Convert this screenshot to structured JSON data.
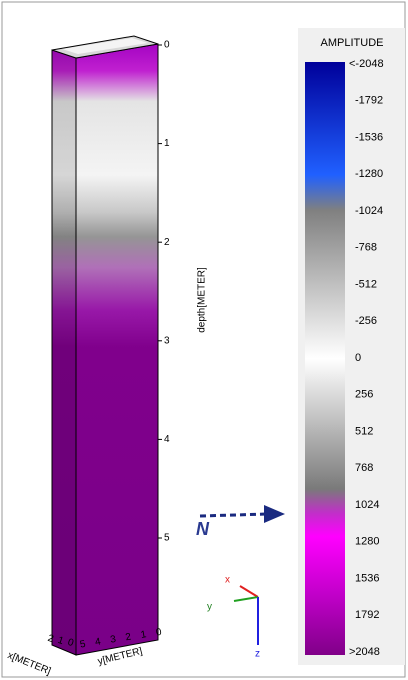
{
  "volume": {
    "depth_axis": {
      "title": "depth[METER]",
      "ticks": [
        0,
        1,
        2,
        3,
        4,
        5
      ]
    },
    "x_axis": {
      "title": "x[METER]",
      "ticks": [
        2,
        1,
        0
      ]
    },
    "y_axis": {
      "title": "y[METER]",
      "ticks": [
        5,
        4,
        3,
        2,
        1,
        0
      ]
    }
  },
  "compass": {
    "label": "N"
  },
  "triad": {
    "x": "x",
    "y": "y",
    "z": "z"
  },
  "colorbar": {
    "title": "AMPLITUDE",
    "labels": [
      "<-2048",
      "-1792",
      "-1536",
      "-1280",
      "-1024",
      "-768",
      "-512",
      "-256",
      "0",
      "256",
      "512",
      "768",
      "1024",
      "1280",
      "1536",
      "1792",
      ">2048"
    ]
  }
}
